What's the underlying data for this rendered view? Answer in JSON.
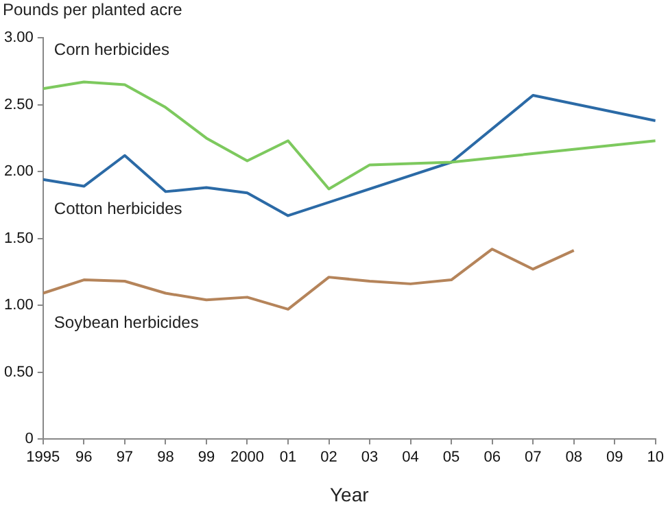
{
  "chart_data": {
    "type": "line",
    "ylabel": "Pounds per planted acre",
    "xlabel": "Year",
    "xlim": [
      1995,
      2010
    ],
    "ylim": [
      0,
      3
    ],
    "xticks": [
      1995,
      {
        "value": 1996,
        "label": "96"
      },
      {
        "value": 1997,
        "label": "97"
      },
      {
        "value": 1998,
        "label": "98"
      },
      {
        "value": 1999,
        "label": "99"
      },
      2000,
      {
        "value": 2001,
        "label": "01"
      },
      {
        "value": 2002,
        "label": "02"
      },
      {
        "value": 2003,
        "label": "03"
      },
      {
        "value": 2004,
        "label": "04"
      },
      {
        "value": 2005,
        "label": "05"
      },
      {
        "value": 2006,
        "label": "06"
      },
      {
        "value": 2007,
        "label": "07"
      },
      {
        "value": 2008,
        "label": "08"
      },
      {
        "value": 2009,
        "label": "09"
      },
      {
        "value": 2010,
        "label": "10"
      }
    ],
    "yticks": [
      0,
      {
        "value": 0.5,
        "label": "0.50"
      },
      {
        "value": 1,
        "label": "1.00"
      },
      {
        "value": 1.5,
        "label": "1.50"
      },
      {
        "value": 2,
        "label": "2.00"
      },
      {
        "value": 2.5,
        "label": "2.50"
      },
      {
        "value": 3,
        "label": "3.00"
      }
    ],
    "grid": false,
    "legend": false,
    "marker": "none",
    "series": [
      {
        "name": "Corn herbicides",
        "color": "#7dc95e",
        "x": [
          1995,
          1996,
          1997,
          1998,
          1999,
          2000,
          2001,
          2002,
          2003,
          2005,
          2010
        ],
        "values": [
          2.62,
          2.67,
          2.65,
          2.48,
          2.25,
          2.08,
          2.23,
          1.87,
          2.05,
          2.07,
          2.23
        ]
      },
      {
        "name": "Cotton herbicides",
        "color": "#2b6aa6",
        "x": [
          1995,
          1996,
          1997,
          1998,
          1999,
          2000,
          2001,
          2005,
          2007,
          2010
        ],
        "values": [
          1.94,
          1.89,
          2.12,
          1.85,
          1.88,
          1.84,
          1.67,
          2.07,
          2.57,
          2.38
        ]
      },
      {
        "name": "Soybean herbicides",
        "color": "#b5845a",
        "x": [
          1995,
          1996,
          1997,
          1998,
          1999,
          2000,
          2001,
          2002,
          2003,
          2004,
          2005,
          2006,
          2007,
          2008
        ],
        "values": [
          1.09,
          1.19,
          1.18,
          1.09,
          1.04,
          1.06,
          0.97,
          1.21,
          1.18,
          1.16,
          1.19,
          1.42,
          1.27,
          1.41
        ]
      }
    ]
  }
}
